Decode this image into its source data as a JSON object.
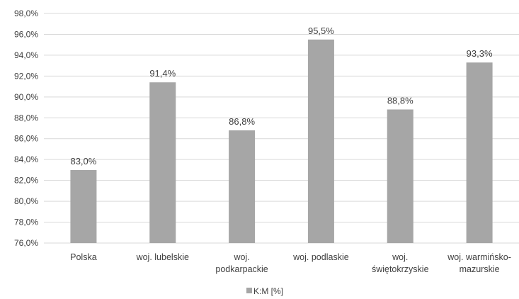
{
  "chart_data": {
    "type": "bar",
    "categories": [
      [
        "Polska"
      ],
      [
        "woj. lubelskie"
      ],
      [
        "woj.",
        "podkarpackie"
      ],
      [
        "woj. podlaskie"
      ],
      [
        "woj.",
        "świętokrzyskie"
      ],
      [
        "woj. warmińsko-",
        "mazurskie"
      ]
    ],
    "series": [
      {
        "name": "K:M [%]",
        "values": [
          83.0,
          91.4,
          86.8,
          95.5,
          88.8,
          93.3
        ],
        "labels": [
          "83,0%",
          "91,4%",
          "86,8%",
          "95,5%",
          "88,8%",
          "93,3%"
        ],
        "color": "#a6a6a6"
      }
    ],
    "yticks": [
      76,
      78,
      80,
      82,
      84,
      86,
      88,
      90,
      92,
      94,
      96,
      98
    ],
    "ytick_labels": [
      "76,0%",
      "78,0%",
      "80,0%",
      "82,0%",
      "84,0%",
      "86,0%",
      "88,0%",
      "90,0%",
      "92,0%",
      "94,0%",
      "96,0%",
      "98,0%"
    ],
    "ylim": [
      76,
      98
    ],
    "grid": true,
    "gridline_color": "#d9d9d9",
    "legend_position": "bottom"
  }
}
